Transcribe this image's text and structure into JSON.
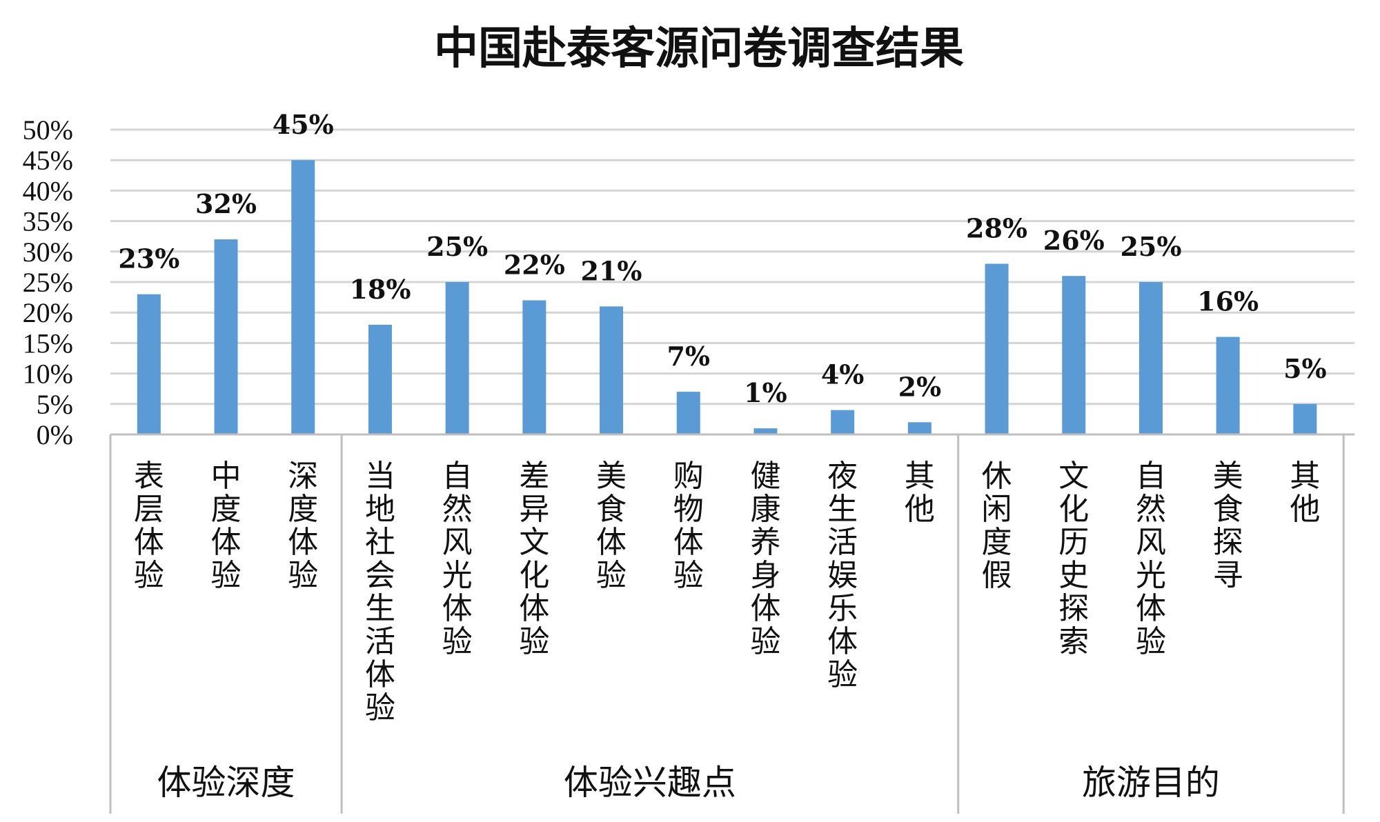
{
  "chart_data": {
    "type": "bar",
    "title": "中国赴泰客源问卷调查结果",
    "xlabel": "",
    "ylabel": "",
    "ylim": [
      0,
      50
    ],
    "yticks": [
      "0%",
      "5%",
      "10%",
      "15%",
      "20%",
      "25%",
      "30%",
      "35%",
      "40%",
      "45%",
      "50%"
    ],
    "grid": true,
    "legend": "none",
    "bar_color": "#5B9BD5",
    "groups": [
      {
        "name": "体验深度",
        "categories": [
          "表层体验",
          "中度体验",
          "深度体验"
        ],
        "values": [
          23,
          32,
          45
        ],
        "data_labels": [
          "23%",
          "32%",
          "45%"
        ]
      },
      {
        "name": "体验兴趣点",
        "categories": [
          "当地社会生活体验",
          "自然风光体验",
          "差异文化体验",
          "美食体验",
          "购物体验",
          "健康养身体验",
          "夜生活娱乐体验",
          "其他"
        ],
        "values": [
          18,
          25,
          22,
          21,
          7,
          1,
          4,
          2
        ],
        "data_labels": [
          "18%",
          "25%",
          "22%",
          "21%",
          "7%",
          "1%",
          "4%",
          "2%"
        ]
      },
      {
        "name": "旅游目的",
        "categories": [
          "休闲度假",
          "文化历史探索",
          "自然风光体验",
          "美食探寻",
          "其他"
        ],
        "values": [
          28,
          26,
          25,
          16,
          5
        ],
        "data_labels": [
          "28%",
          "26%",
          "25%",
          "16%",
          "5%"
        ]
      }
    ]
  }
}
